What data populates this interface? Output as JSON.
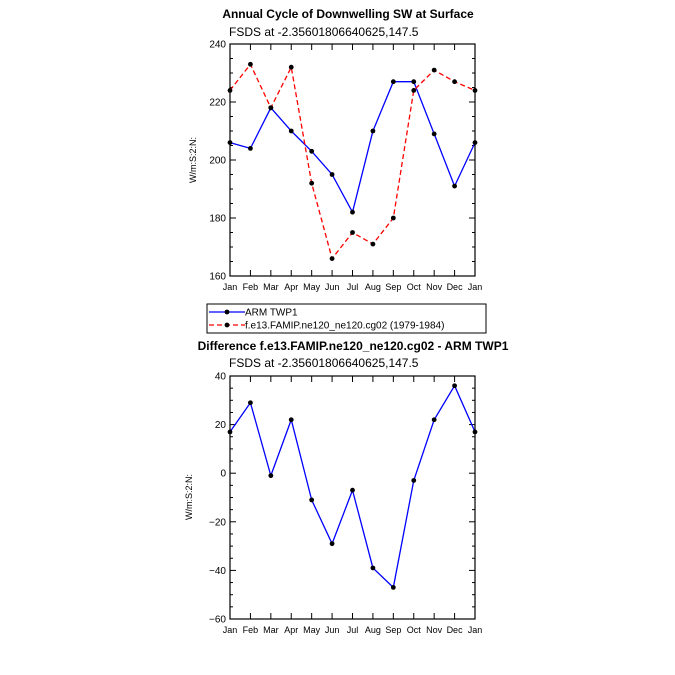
{
  "chart_data": [
    {
      "type": "line",
      "title": "Annual Cycle of Downwelling SW at Surface",
      "subtitle": "FSDS at -2.35601806640625,147.5",
      "ylabel": "W/m:S:2:N:",
      "xlabel": "",
      "categories": [
        "Jan",
        "Feb",
        "Mar",
        "Apr",
        "May",
        "Jun",
        "Jul",
        "Aug",
        "Sep",
        "Oct",
        "Nov",
        "Dec",
        "Jan"
      ],
      "ylim": [
        160,
        240
      ],
      "yticks": [
        160,
        180,
        200,
        220,
        240
      ],
      "series": [
        {
          "name": "ARM TWP1",
          "color": "#0000ff",
          "dash": "solid",
          "values": [
            206,
            204,
            218,
            210,
            203,
            195,
            182,
            210,
            227,
            227,
            209,
            191,
            206
          ]
        },
        {
          "name": "f.e13.FAMIP.ne120_ne120.cg02 (1979-1984)",
          "color": "#ff0000",
          "dash": "dashed",
          "values": [
            224,
            233,
            218,
            232,
            192,
            166,
            175,
            171,
            180,
            224,
            231,
            227,
            224
          ]
        }
      ],
      "legend": "bottom"
    },
    {
      "type": "line",
      "title": "Difference f.e13.FAMIP.ne120_ne120.cg02 - ARM TWP1",
      "subtitle": "FSDS at -2.35601806640625,147.5",
      "ylabel": "W/m:S:2:N:",
      "xlabel": "",
      "categories": [
        "Jan",
        "Feb",
        "Mar",
        "Apr",
        "May",
        "Jun",
        "Jul",
        "Aug",
        "Sep",
        "Oct",
        "Nov",
        "Dec",
        "Jan"
      ],
      "ylim": [
        -60,
        40
      ],
      "yticks": [
        -60,
        -40,
        -20,
        0,
        20,
        40
      ],
      "series": [
        {
          "name": "",
          "color": "#0000ff",
          "dash": "solid",
          "values": [
            17,
            29,
            -1,
            22,
            -11,
            -29,
            -7,
            -39,
            -47,
            -3,
            22,
            36,
            17
          ]
        }
      ]
    }
  ]
}
